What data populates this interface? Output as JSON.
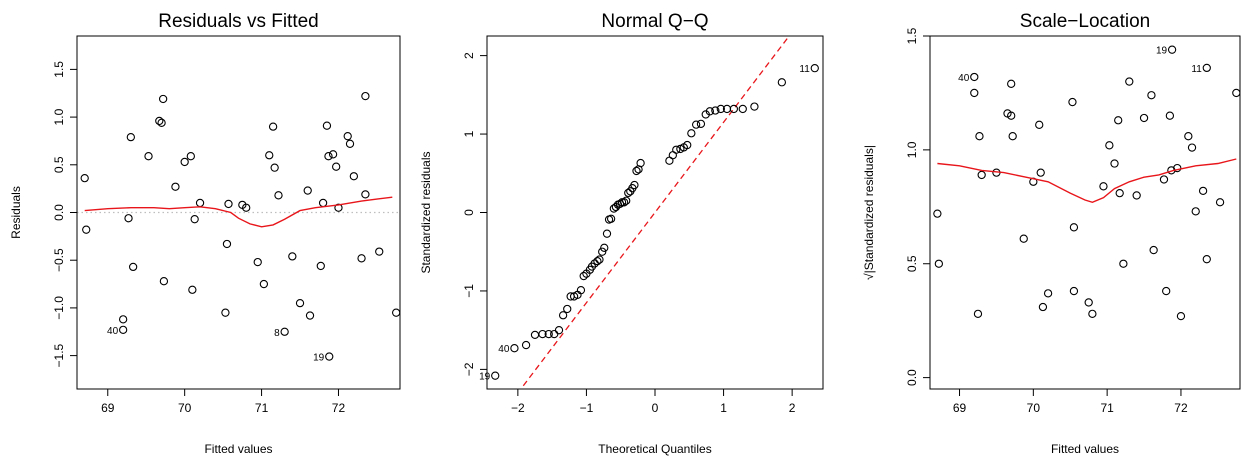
{
  "chart_data": [
    {
      "type": "scatter",
      "title": "Residuals vs Fitted",
      "xlabel": "Fitted values",
      "ylabel": "Residuals",
      "xlim": [
        68.6,
        72.8
      ],
      "ylim": [
        -1.85,
        1.85
      ],
      "xticks": [
        69,
        70,
        71,
        72
      ],
      "xticklabels": [
        "69",
        "70",
        "71",
        "72"
      ],
      "yticks": [
        -1.5,
        -1.0,
        -0.5,
        0.0,
        0.5,
        1.0,
        1.5
      ],
      "yticklabels": [
        "−1.5",
        "−1.0",
        "−0.5",
        "0.0",
        "0.5",
        "1.0",
        "1.5"
      ],
      "grid": false,
      "reference_line": {
        "y": 0,
        "color": "#bebebe",
        "style": "dotted"
      },
      "smoother_color": "#e8161b",
      "points": [
        [
          68.7,
          0.36
        ],
        [
          68.72,
          -0.18
        ],
        [
          69.2,
          -1.12
        ],
        [
          69.2,
          -1.23
        ],
        [
          69.27,
          -0.06
        ],
        [
          69.3,
          0.79
        ],
        [
          69.33,
          -0.57
        ],
        [
          69.53,
          0.59
        ],
        [
          69.67,
          0.96
        ],
        [
          69.7,
          0.94
        ],
        [
          69.72,
          1.19
        ],
        [
          69.73,
          -0.72
        ],
        [
          69.88,
          0.27
        ],
        [
          70.0,
          0.53
        ],
        [
          70.08,
          0.59
        ],
        [
          70.1,
          -0.81
        ],
        [
          70.13,
          -0.07
        ],
        [
          70.2,
          0.1
        ],
        [
          70.53,
          -1.05
        ],
        [
          70.55,
          -0.33
        ],
        [
          70.57,
          0.09
        ],
        [
          70.75,
          0.08
        ],
        [
          70.8,
          0.05
        ],
        [
          70.95,
          -0.52
        ],
        [
          71.03,
          -0.75
        ],
        [
          71.1,
          0.6
        ],
        [
          71.15,
          0.9
        ],
        [
          71.17,
          0.47
        ],
        [
          71.22,
          0.18
        ],
        [
          71.3,
          -1.25
        ],
        [
          71.4,
          -0.46
        ],
        [
          71.5,
          -0.95
        ],
        [
          71.6,
          0.23
        ],
        [
          71.63,
          -1.08
        ],
        [
          71.77,
          -0.56
        ],
        [
          71.8,
          0.1
        ],
        [
          71.85,
          0.91
        ],
        [
          71.87,
          0.59
        ],
        [
          71.88,
          -1.51
        ],
        [
          71.93,
          0.61
        ],
        [
          71.97,
          0.48
        ],
        [
          72.0,
          0.05
        ],
        [
          72.12,
          0.8
        ],
        [
          72.15,
          0.72
        ],
        [
          72.2,
          0.38
        ],
        [
          72.3,
          -0.48
        ],
        [
          72.35,
          1.22
        ],
        [
          72.35,
          0.19
        ],
        [
          72.53,
          -0.41
        ],
        [
          72.75,
          -1.05
        ]
      ],
      "smoother": [
        [
          68.7,
          0.02
        ],
        [
          69.0,
          0.04
        ],
        [
          69.3,
          0.05
        ],
        [
          69.6,
          0.05
        ],
        [
          69.8,
          0.04
        ],
        [
          70.0,
          0.05
        ],
        [
          70.2,
          0.06
        ],
        [
          70.4,
          0.04
        ],
        [
          70.6,
          0.0
        ],
        [
          70.7,
          -0.06
        ],
        [
          70.85,
          -0.12
        ],
        [
          71.0,
          -0.15
        ],
        [
          71.15,
          -0.13
        ],
        [
          71.3,
          -0.07
        ],
        [
          71.5,
          0.02
        ],
        [
          71.7,
          0.05
        ],
        [
          72.0,
          0.08
        ],
        [
          72.3,
          0.12
        ],
        [
          72.5,
          0.14
        ],
        [
          72.7,
          0.16
        ]
      ],
      "labels": [
        {
          "text": "40",
          "x": 69.2,
          "y": -1.23
        },
        {
          "text": "8",
          "x": 71.3,
          "y": -1.25
        },
        {
          "text": "19",
          "x": 71.88,
          "y": -1.51
        }
      ]
    },
    {
      "type": "scatter",
      "title": "Normal Q−Q",
      "xlabel": "Theoretical Quantiles",
      "ylabel": "Standardized residuals",
      "xlim": [
        -2.45,
        2.45
      ],
      "ylim": [
        -2.25,
        2.25
      ],
      "xticks": [
        -2,
        -1,
        0,
        1,
        2
      ],
      "xticklabels": [
        "−2",
        "−1",
        "0",
        "1",
        "2"
      ],
      "yticks": [
        -2,
        -1,
        0,
        1,
        2
      ],
      "yticklabels": [
        "−2",
        "−1",
        "0",
        "1",
        "2"
      ],
      "grid": false,
      "reference_line_color": "#e8161b",
      "reference_line": {
        "slope": 1.15,
        "intercept": 0.0
      },
      "points": [
        [
          -2.33,
          -2.08
        ],
        [
          -2.05,
          -1.73
        ],
        [
          -1.88,
          -1.69
        ],
        [
          -1.75,
          -1.56
        ],
        [
          -1.64,
          -1.55
        ],
        [
          -1.55,
          -1.55
        ],
        [
          -1.47,
          -1.55
        ],
        [
          -1.4,
          -1.5
        ],
        [
          -1.34,
          -1.31
        ],
        [
          -1.28,
          -1.23
        ],
        [
          -1.23,
          -1.07
        ],
        [
          -1.18,
          -1.07
        ],
        [
          -1.13,
          -1.05
        ],
        [
          -1.08,
          -0.99
        ],
        [
          -1.04,
          -0.81
        ],
        [
          -1.0,
          -0.78
        ],
        [
          -0.95,
          -0.73
        ],
        [
          -0.92,
          -0.69
        ],
        [
          -0.88,
          -0.65
        ],
        [
          -0.84,
          -0.62
        ],
        [
          -0.81,
          -0.6
        ],
        [
          -0.77,
          -0.5
        ],
        [
          -0.74,
          -0.45
        ],
        [
          -0.7,
          -0.27
        ],
        [
          -0.67,
          -0.09
        ],
        [
          -0.64,
          -0.08
        ],
        [
          -0.6,
          0.05
        ],
        [
          -0.57,
          0.07
        ],
        [
          -0.54,
          0.1
        ],
        [
          -0.51,
          0.11
        ],
        [
          -0.48,
          0.13
        ],
        [
          -0.45,
          0.13
        ],
        [
          -0.42,
          0.15
        ],
        [
          -0.39,
          0.25
        ],
        [
          -0.36,
          0.27
        ],
        [
          -0.33,
          0.31
        ],
        [
          -0.3,
          0.35
        ],
        [
          -0.27,
          0.53
        ],
        [
          -0.24,
          0.55
        ],
        [
          -0.21,
          0.63
        ],
        [
          0.21,
          0.66
        ],
        [
          0.26,
          0.73
        ],
        [
          0.31,
          0.8
        ],
        [
          0.37,
          0.81
        ],
        [
          0.42,
          0.83
        ],
        [
          0.47,
          0.86
        ],
        [
          0.53,
          1.01
        ],
        [
          0.6,
          1.12
        ],
        [
          0.67,
          1.13
        ],
        [
          0.74,
          1.25
        ],
        [
          0.8,
          1.29
        ],
        [
          0.88,
          1.3
        ],
        [
          0.96,
          1.32
        ],
        [
          1.05,
          1.32
        ],
        [
          1.15,
          1.32
        ],
        [
          1.28,
          1.32
        ],
        [
          1.45,
          1.35
        ],
        [
          1.85,
          1.66
        ],
        [
          2.33,
          1.84
        ]
      ],
      "labels": [
        {
          "text": "19",
          "x": -2.33,
          "y": -2.08
        },
        {
          "text": "40",
          "x": -2.05,
          "y": -1.73
        },
        {
          "text": "11",
          "x": 2.33,
          "y": 1.84
        }
      ]
    },
    {
      "type": "scatter",
      "title": "Scale−Location",
      "xlabel": "Fitted values",
      "ylabel": "√|Standardized residuals|",
      "xlim": [
        68.6,
        72.8
      ],
      "ylim": [
        -0.05,
        1.5
      ],
      "xticks": [
        69,
        70,
        71,
        72
      ],
      "xticklabels": [
        "69",
        "70",
        "71",
        "72"
      ],
      "yticks": [
        0.0,
        0.5,
        1.0,
        1.5
      ],
      "yticklabels": [
        "0.0",
        "0.5",
        "1.0",
        "1.5"
      ],
      "grid": false,
      "smoother_color": "#e8161b",
      "points": [
        [
          68.7,
          0.72
        ],
        [
          68.72,
          0.5
        ],
        [
          69.2,
          1.32
        ],
        [
          69.2,
          1.25
        ],
        [
          69.25,
          0.28
        ],
        [
          69.27,
          1.06
        ],
        [
          69.3,
          0.89
        ],
        [
          69.5,
          0.9
        ],
        [
          69.65,
          1.16
        ],
        [
          69.7,
          1.15
        ],
        [
          69.7,
          1.29
        ],
        [
          69.72,
          1.06
        ],
        [
          69.87,
          0.61
        ],
        [
          70.0,
          0.86
        ],
        [
          70.08,
          1.11
        ],
        [
          70.1,
          0.9
        ],
        [
          70.13,
          0.31
        ],
        [
          70.2,
          0.37
        ],
        [
          70.53,
          1.21
        ],
        [
          70.55,
          0.66
        ],
        [
          70.55,
          0.38
        ],
        [
          70.75,
          0.33
        ],
        [
          70.8,
          0.28
        ],
        [
          70.95,
          0.84
        ],
        [
          71.03,
          1.02
        ],
        [
          71.1,
          0.94
        ],
        [
          71.15,
          1.13
        ],
        [
          71.17,
          0.81
        ],
        [
          71.22,
          0.5
        ],
        [
          71.3,
          1.3
        ],
        [
          71.4,
          0.8
        ],
        [
          71.5,
          1.14
        ],
        [
          71.6,
          1.24
        ],
        [
          71.63,
          0.56
        ],
        [
          71.77,
          0.87
        ],
        [
          71.8,
          0.38
        ],
        [
          71.85,
          1.15
        ],
        [
          71.87,
          0.91
        ],
        [
          71.88,
          1.44
        ],
        [
          71.95,
          0.92
        ],
        [
          72.0,
          0.27
        ],
        [
          72.1,
          1.06
        ],
        [
          72.15,
          1.01
        ],
        [
          72.2,
          0.73
        ],
        [
          72.3,
          0.82
        ],
        [
          72.35,
          0.52
        ],
        [
          72.35,
          1.36
        ],
        [
          72.53,
          0.77
        ],
        [
          72.75,
          1.25
        ]
      ],
      "smoother": [
        [
          68.7,
          0.94
        ],
        [
          69.0,
          0.93
        ],
        [
          69.3,
          0.91
        ],
        [
          69.6,
          0.9
        ],
        [
          69.9,
          0.88
        ],
        [
          70.2,
          0.86
        ],
        [
          70.5,
          0.81
        ],
        [
          70.7,
          0.78
        ],
        [
          70.8,
          0.77
        ],
        [
          70.95,
          0.79
        ],
        [
          71.1,
          0.83
        ],
        [
          71.3,
          0.86
        ],
        [
          71.5,
          0.88
        ],
        [
          71.7,
          0.89
        ],
        [
          71.9,
          0.91
        ],
        [
          72.2,
          0.93
        ],
        [
          72.5,
          0.94
        ],
        [
          72.75,
          0.96
        ]
      ],
      "labels": [
        {
          "text": "40",
          "x": 69.2,
          "y": 1.32
        },
        {
          "text": "19",
          "x": 71.88,
          "y": 1.44
        },
        {
          "text": "11",
          "x": 72.35,
          "y": 1.36
        }
      ]
    }
  ]
}
